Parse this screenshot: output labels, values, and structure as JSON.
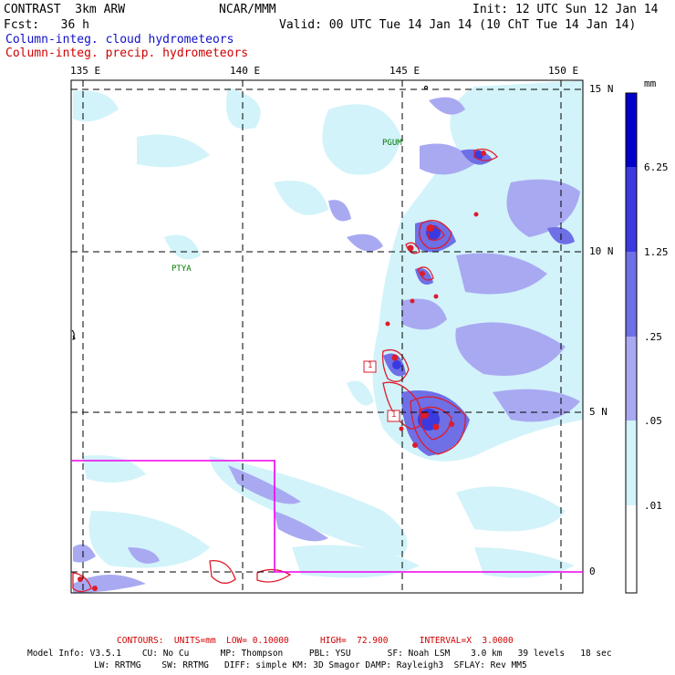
{
  "header": {
    "model": "CONTRAST  3km ARW",
    "org": "NCAR/MMM",
    "init": "Init: 12 UTC Sun 12 Jan 14",
    "fcst": "Fcst:   36 h",
    "valid": "Valid: 00 UTC Tue 14 Jan 14 (10 ChT Tue 14 Jan 14)",
    "field1": "Column-integ. cloud hydrometeors",
    "field2": "Column-integ. precip. hydrometeors"
  },
  "map": {
    "lon_labels": [
      "135 E",
      "140 E",
      "145 E",
      "150 E"
    ],
    "lat_labels": [
      "15 N",
      "10 N",
      "5 N",
      "0"
    ],
    "place_labels": [
      "PGUM",
      "PTYA"
    ],
    "contour_labels": [
      "1",
      "1"
    ]
  },
  "legend": {
    "unit": "mm",
    "levels": [
      "6.25",
      "1.25",
      ".25",
      ".05",
      ".01"
    ],
    "colors": [
      "#0000cc",
      "#3a3ae0",
      "#6f6fe6",
      "#a9a9f2",
      "#d2f3fa",
      "#ffffff"
    ]
  },
  "footer": {
    "contours": "CONTOURS:  UNITS=mm  LOW= 0.10000      HIGH=  72.900      INTERVAL=X  3.0000",
    "line1": "Model Info: V3.5.1    CU: No Cu      MP: Thompson     PBL: YSU       SF: Noah LSM    3.0 km   39 levels   18 sec",
    "line2": "LW: RRTMG    SW: RRTMG   DIFF: simple KM: 3D Smagor DAMP: Rayleigh3  SFLAY: Rev MM5"
  }
}
